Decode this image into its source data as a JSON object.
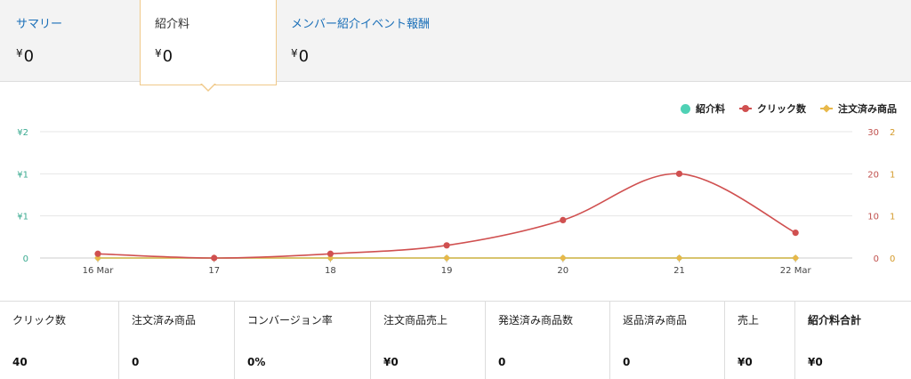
{
  "tabs": [
    {
      "label": "サマリー",
      "currency": "¥",
      "value": "0"
    },
    {
      "label": "紹介料",
      "currency": "¥",
      "value": "0"
    },
    {
      "label": "メンバー紹介イベント報酬",
      "currency": "¥",
      "value": "0"
    }
  ],
  "legend": [
    {
      "label": "紹介料",
      "color": "#4fd1b5"
    },
    {
      "label": "クリック数",
      "color": "#d05050"
    },
    {
      "label": "注文済み商品",
      "color": "#e8b84a"
    }
  ],
  "chart_data": {
    "type": "line",
    "x": [
      "16 Mar",
      "17",
      "18",
      "19",
      "20",
      "21",
      "22 Mar"
    ],
    "y_left_ticks": [
      "¥2",
      "¥1",
      "¥1",
      "0"
    ],
    "y_mid_ticks": [
      "30",
      "20",
      "10",
      "0"
    ],
    "y_right_ticks": [
      "2",
      "1",
      "1",
      "0"
    ],
    "series": [
      {
        "name": "紹介料",
        "axis": "left",
        "color": "#4fd1b5",
        "values": [
          0,
          0,
          0,
          0,
          0,
          0,
          0
        ]
      },
      {
        "name": "クリック数",
        "axis": "mid",
        "color": "#d05050",
        "values": [
          1,
          0,
          1,
          3,
          9,
          20,
          6
        ],
        "ylim": [
          0,
          30
        ]
      },
      {
        "name": "注文済み商品",
        "axis": "right",
        "color": "#e8b84a",
        "values": [
          0,
          0,
          0,
          0,
          0,
          0,
          0
        ]
      }
    ]
  },
  "stats": [
    {
      "label": "クリック数",
      "value": "40"
    },
    {
      "label": "注文済み商品",
      "value": "0"
    },
    {
      "label": "コンバージョン率",
      "value": "0%"
    },
    {
      "label": "注文商品売上",
      "value": "¥0"
    },
    {
      "label": "発送済み商品数",
      "value": "0"
    },
    {
      "label": "返品済み商品",
      "value": "0"
    },
    {
      "label": "売上",
      "value": "¥0"
    },
    {
      "label": "紹介料合計",
      "value": "¥0"
    }
  ]
}
